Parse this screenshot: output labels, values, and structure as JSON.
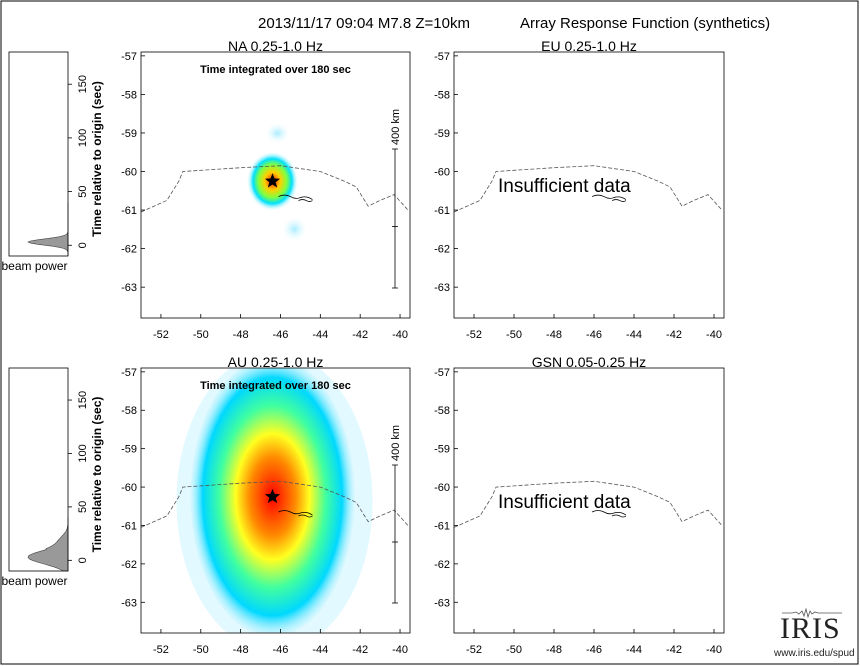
{
  "header": {
    "event": "2013/11/17 09:04  M7.8  Z=10km",
    "title": "Array Response Function (synthetics)"
  },
  "colors": {
    "heat_low": "#00c8ff",
    "heat_mid": "#ffff00",
    "heat_high": "#ff0000",
    "beam_fill": "#999999",
    "coast": "#000000"
  },
  "beam": {
    "ylabel": "Time relative to origin (sec)",
    "xlabel": "beam power",
    "yticks": [
      "150",
      "100",
      "50",
      "0"
    ]
  },
  "panels": [
    {
      "label": "NA  0.25-1.0 Hz",
      "note": "Time integrated over 180 sec",
      "scale_label": "400 km",
      "has_data": true,
      "blob": "small",
      "xticks": [
        "-52",
        "-50",
        "-48",
        "-46",
        "-44",
        "-42",
        "-40"
      ],
      "yticks": [
        "-57",
        "-58",
        "-59",
        "-60",
        "-61",
        "-62",
        "-63"
      ]
    },
    {
      "label": "EU  0.25-1.0 Hz",
      "message": "Insufficient data",
      "has_data": false,
      "xticks": [
        "-52",
        "-50",
        "-48",
        "-46",
        "-44",
        "-42",
        "-40"
      ],
      "yticks": [
        "-57",
        "-58",
        "-59",
        "-60",
        "-61",
        "-62",
        "-63"
      ]
    },
    {
      "label": "AU  0.25-1.0 Hz",
      "note": "Time integrated over 180 sec",
      "scale_label": "400 km",
      "has_data": true,
      "blob": "large",
      "xticks": [
        "-52",
        "-50",
        "-48",
        "-46",
        "-44",
        "-42",
        "-40"
      ],
      "yticks": [
        "-57",
        "-58",
        "-59",
        "-60",
        "-61",
        "-62",
        "-63"
      ]
    },
    {
      "label": "GSN  0.05-0.25 Hz",
      "message": "Insufficient data",
      "has_data": false,
      "xticks": [
        "-52",
        "-50",
        "-48",
        "-46",
        "-44",
        "-42",
        "-40"
      ],
      "yticks": [
        "-57",
        "-58",
        "-59",
        "-60",
        "-61",
        "-62",
        "-63"
      ]
    }
  ],
  "chart_data": {
    "type": "heatmap",
    "title": "Array Response Function (synthetics)",
    "subtitle": "2013/11/17 09:04  M7.8  Z=10km",
    "x_range": [
      -53,
      -39.5
    ],
    "y_range": [
      -63.8,
      -56.9
    ],
    "epicenter": {
      "x": -46.4,
      "y": -60.25
    },
    "plots": [
      {
        "name": "NA  0.25-1.0 Hz",
        "peak": {
          "x": -46.5,
          "y": -60.3
        }
      },
      {
        "name": "EU  0.25-1.0 Hz",
        "status": "Insufficient data"
      },
      {
        "name": "AU  0.25-1.0 Hz",
        "peak": {
          "x": -46.5,
          "y": -60.3
        }
      },
      {
        "name": "GSN  0.05-0.25 Hz",
        "status": "Insufficient data"
      }
    ],
    "beam_power_y_range": [
      -10,
      180
    ]
  },
  "logo": {
    "text": "IRIS",
    "url": "www.iris.edu/spud"
  }
}
